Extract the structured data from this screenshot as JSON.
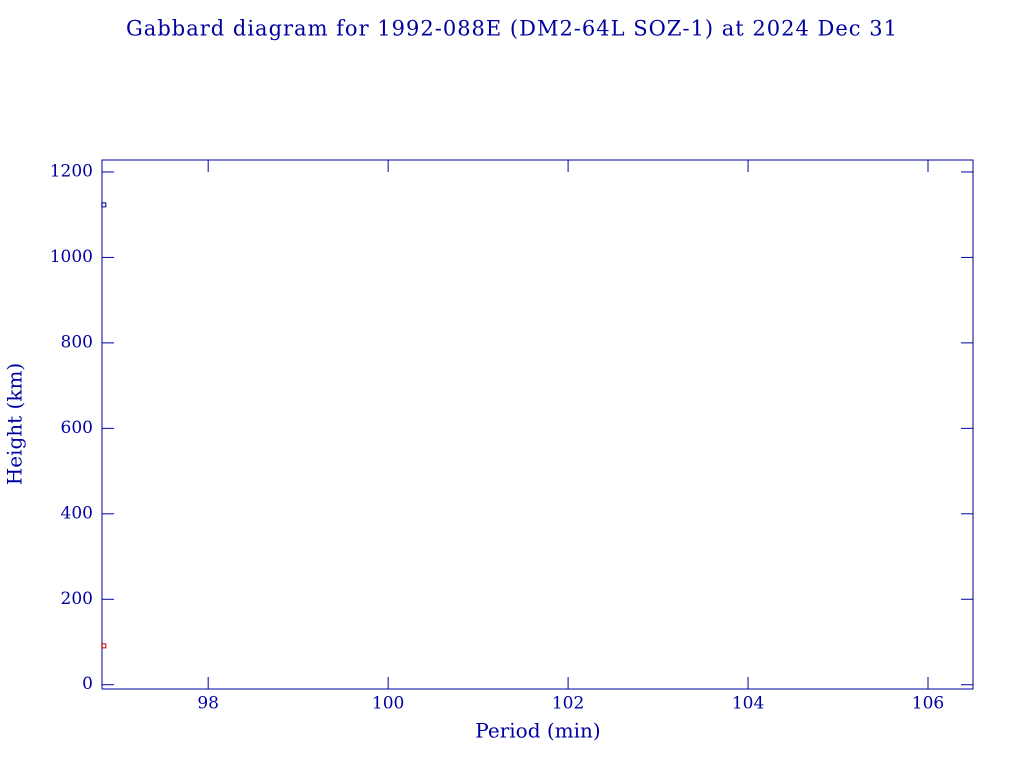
{
  "chart_data": {
    "type": "scatter",
    "title": "Gabbard diagram for 1992-088E (DM2-64L SOZ-1) at 2024 Dec 31",
    "x_label": "Period (min)",
    "y_label": "Height (km)",
    "series": [
      {
        "color": "#0000a0",
        "x": [
          96.84
        ],
        "values": [
          1123
        ]
      },
      {
        "color": "#c00000",
        "x": [
          96.84
        ],
        "values": [
          91
        ]
      }
    ],
    "xlim": [
      96.82,
      106.5
    ],
    "xticks": [
      98,
      100,
      102,
      104,
      106
    ],
    "ylim": [
      -10,
      1228
    ],
    "yticks": [
      0,
      200,
      400,
      600,
      800,
      1000,
      1200
    ],
    "axis_color": "#0000a0"
  }
}
